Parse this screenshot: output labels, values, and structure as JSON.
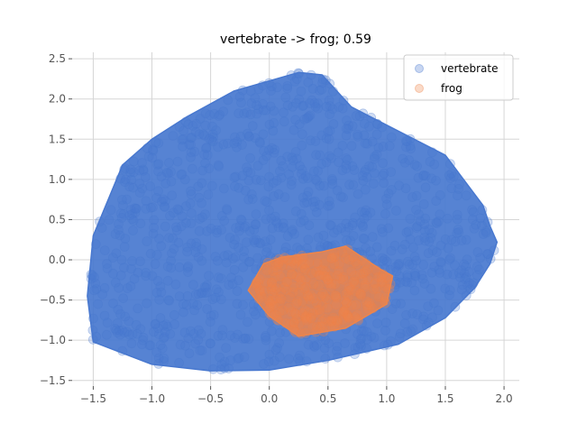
{
  "chart_data": {
    "type": "scatter",
    "title": "vertebrate -> frog; 0.59",
    "xlabel": "",
    "ylabel": "",
    "xlim": [
      -1.68,
      2.13
    ],
    "ylim": [
      -1.57,
      2.58
    ],
    "grid": true,
    "legend_position": "top-right",
    "x_ticks": [
      -1.5,
      -1.0,
      -0.5,
      0.0,
      0.5,
      1.0,
      1.5,
      2.0
    ],
    "x_tick_labels": [
      "−1.5",
      "−1.0",
      "−0.5",
      "0.0",
      "0.5",
      "1.0",
      "1.5",
      "2.0"
    ],
    "y_ticks": [
      -1.5,
      -1.0,
      -0.5,
      0.0,
      0.5,
      1.0,
      1.5,
      2.0,
      2.5
    ],
    "y_tick_labels": [
      "−1.5",
      "−1.0",
      "−0.5",
      "0.0",
      "0.5",
      "1.0",
      "1.5",
      "2.0",
      "2.5"
    ],
    "series": [
      {
        "name": "vertebrate",
        "color": "#4878cf",
        "hull": [
          [
            -1.55,
            -0.45
          ],
          [
            -1.5,
            -1.02
          ],
          [
            -1.0,
            -1.3
          ],
          [
            -0.5,
            -1.38
          ],
          [
            0.0,
            -1.37
          ],
          [
            0.5,
            -1.25
          ],
          [
            1.1,
            -1.05
          ],
          [
            1.5,
            -0.72
          ],
          [
            1.75,
            -0.35
          ],
          [
            1.88,
            -0.05
          ],
          [
            1.94,
            0.22
          ],
          [
            1.88,
            0.42
          ],
          [
            1.82,
            0.68
          ],
          [
            1.5,
            1.3
          ],
          [
            0.7,
            1.9
          ],
          [
            0.45,
            2.3
          ],
          [
            0.25,
            2.33
          ],
          [
            -0.3,
            2.1
          ],
          [
            -0.7,
            1.78
          ],
          [
            -1.0,
            1.5
          ],
          [
            -1.25,
            1.18
          ],
          [
            -1.5,
            0.3
          ]
        ]
      },
      {
        "name": "frog",
        "color": "#ee854a",
        "hull": [
          [
            -0.18,
            -0.38
          ],
          [
            0.0,
            -0.7
          ],
          [
            0.25,
            -0.95
          ],
          [
            0.65,
            -0.85
          ],
          [
            1.0,
            -0.55
          ],
          [
            1.05,
            -0.2
          ],
          [
            0.95,
            -0.12
          ],
          [
            0.65,
            0.17
          ],
          [
            0.45,
            0.1
          ],
          [
            0.1,
            0.03
          ],
          [
            -0.05,
            -0.05
          ]
        ]
      }
    ]
  }
}
